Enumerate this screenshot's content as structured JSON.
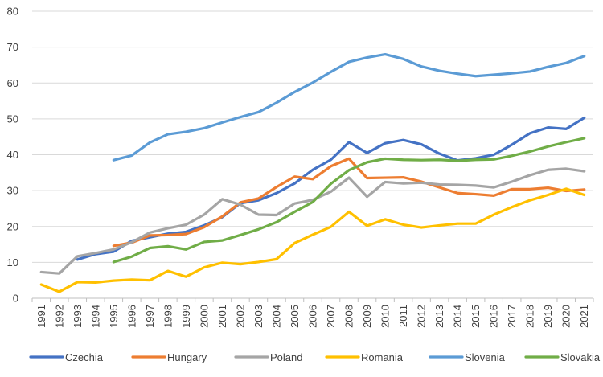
{
  "chart_data": {
    "type": "line",
    "title": "",
    "xlabel": "",
    "ylabel": "",
    "ylim": [
      0,
      80
    ],
    "yticks": [
      "0",
      "10",
      "20",
      "30",
      "40",
      "50",
      "60",
      "70",
      "80"
    ],
    "grid": true,
    "legend_position": "bottom",
    "x": [
      "1991",
      "1992",
      "1993",
      "1994",
      "1995",
      "1996",
      "1997",
      "1998",
      "1999",
      "2000",
      "2001",
      "2002",
      "2003",
      "2004",
      "2005",
      "2006",
      "2007",
      "2008",
      "2009",
      "2010",
      "2011",
      "2012",
      "2013",
      "2014",
      "2015",
      "2016",
      "2017",
      "2018",
      "2019",
      "2020",
      "2021"
    ],
    "series": [
      {
        "name": "Czechia",
        "color": "#4472C4",
        "values": [
          null,
          null,
          10.8,
          12.3,
          13.0,
          16.0,
          17.0,
          18.0,
          18.5,
          20.3,
          22.6,
          26.5,
          27.3,
          29.3,
          32.0,
          35.8,
          38.6,
          43.5,
          40.5,
          43.2,
          44.1,
          42.9,
          40.3,
          38.4,
          39.0,
          40.0,
          42.8,
          46.0,
          47.6,
          47.2,
          50.3
        ]
      },
      {
        "name": "Hungary",
        "color": "#ED7D31",
        "values": [
          null,
          null,
          null,
          null,
          14.6,
          15.5,
          17.5,
          17.6,
          17.9,
          19.8,
          22.8,
          26.7,
          27.8,
          31.0,
          33.9,
          33.2,
          36.8,
          38.9,
          33.5,
          33.6,
          33.7,
          32.5,
          30.9,
          29.3,
          29.0,
          28.6,
          30.4,
          30.4,
          30.8,
          29.9,
          30.3
        ]
      },
      {
        "name": "Poland",
        "color": "#A5A5A5",
        "values": [
          7.3,
          6.9,
          11.7,
          12.6,
          13.6,
          15.6,
          18.3,
          19.5,
          20.5,
          23.3,
          27.6,
          26.1,
          23.3,
          23.2,
          26.4,
          27.4,
          29.7,
          33.6,
          28.3,
          32.4,
          32.0,
          32.2,
          31.7,
          31.6,
          31.4,
          30.9,
          32.5,
          34.3,
          35.8,
          36.1,
          35.4
        ]
      },
      {
        "name": "Romania",
        "color": "#FFC000",
        "values": [
          3.8,
          1.8,
          4.5,
          4.4,
          4.9,
          5.2,
          5.0,
          7.6,
          6.0,
          8.6,
          9.9,
          9.5,
          10.1,
          10.9,
          15.4,
          17.7,
          19.9,
          24.1,
          20.2,
          22.0,
          20.5,
          19.7,
          20.3,
          20.8,
          20.8,
          23.3,
          25.4,
          27.3,
          28.8,
          30.5,
          28.8
        ]
      },
      {
        "name": "Slovenia",
        "color": "#5B9BD5",
        "values": [
          null,
          null,
          null,
          null,
          38.5,
          39.8,
          43.4,
          45.7,
          46.4,
          47.4,
          49.0,
          50.5,
          51.9,
          54.5,
          57.5,
          60.1,
          63.1,
          65.9,
          67.1,
          68.0,
          66.7,
          64.6,
          63.4,
          62.6,
          61.9,
          62.3,
          62.7,
          63.2,
          64.5,
          65.6,
          67.5
        ]
      },
      {
        "name": "Slovakia",
        "color": "#70AD47",
        "values": [
          null,
          null,
          null,
          null,
          10.1,
          11.6,
          14.0,
          14.5,
          13.6,
          15.7,
          16.1,
          17.6,
          19.2,
          21.2,
          24.1,
          26.8,
          31.9,
          35.7,
          37.9,
          38.9,
          38.6,
          38.5,
          38.6,
          38.3,
          38.6,
          38.7,
          39.7,
          40.9,
          42.3,
          43.5,
          44.6
        ]
      }
    ]
  }
}
